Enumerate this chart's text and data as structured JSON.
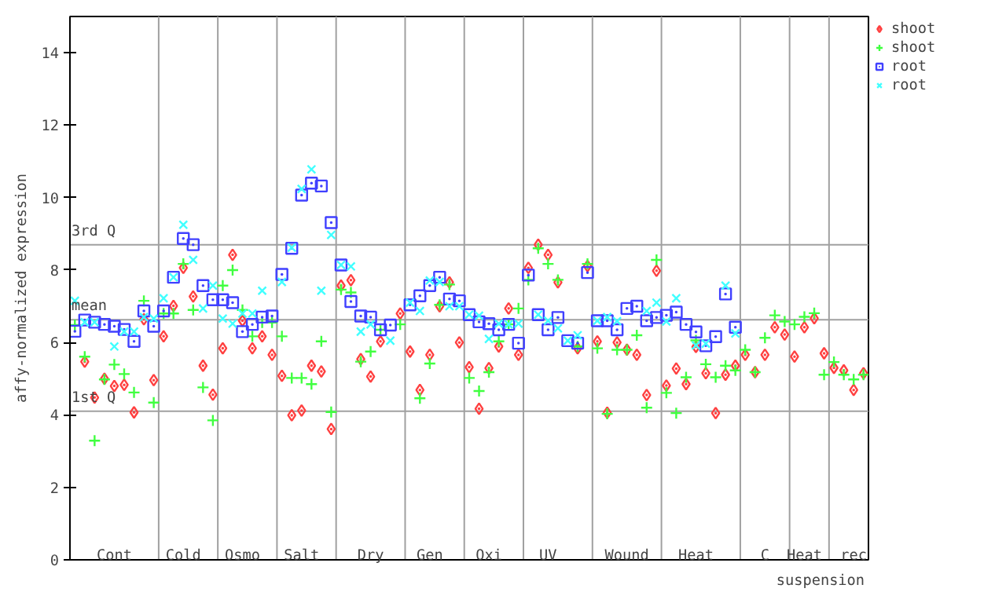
{
  "chart_data": {
    "type": "scatter",
    "ylabel": "affy-normalized expression",
    "categories": [
      null,
      null,
      null,
      null,
      "Cont",
      null,
      null,
      null,
      null,
      null,
      null,
      "Cold",
      null,
      null,
      null,
      null,
      null,
      "Osmo",
      null,
      null,
      null,
      null,
      null,
      "Salt",
      null,
      null,
      null,
      null,
      null,
      null,
      "Dry",
      null,
      null,
      null,
      null,
      null,
      "Gen",
      null,
      null,
      null,
      null,
      null,
      "Oxi",
      null,
      null,
      null,
      null,
      null,
      "UV",
      null,
      null,
      null,
      null,
      null,
      null,
      null,
      "Wound",
      null,
      null,
      null,
      null,
      null,
      null,
      "Heat",
      null,
      null,
      null,
      null,
      null,
      null,
      "C",
      null,
      null,
      null,
      "Heat",
      null,
      null,
      null,
      null,
      "rec",
      null
    ],
    "annotations": [
      "suspension"
    ],
    "ylim": [
      0,
      15
    ],
    "yticks": [
      0,
      2,
      4,
      6,
      8,
      10,
      12,
      14
    ],
    "grid": false,
    "legend": "top right",
    "ref_lines": [
      {
        "axis": "y",
        "value": 8.7,
        "label": "3rd Q",
        "color": "#a0a0a0"
      },
      {
        "axis": "y",
        "value": 6.63,
        "label": "mean",
        "color": "#a0a0a0"
      },
      {
        "axis": "y",
        "value": 4.1,
        "label": "1st Q",
        "color": "#a0a0a0"
      }
    ],
    "series": [
      {
        "name": "shoot",
        "color": "#ff4040",
        "marker": "diamond",
        "values": [
          null,
          5.47,
          4.48,
          5.0,
          4.8,
          4.83,
          4.07,
          6.64,
          4.96,
          6.17,
          7.01,
          8.06,
          7.27,
          5.36,
          4.56,
          5.84,
          8.42,
          6.6,
          5.84,
          6.17,
          5.66,
          5.08,
          3.99,
          4.12,
          5.36,
          5.2,
          3.61,
          7.57,
          7.72,
          5.54,
          5.06,
          6.03,
          null,
          6.8,
          5.75,
          4.69,
          5.66,
          7.0,
          7.66,
          6.0,
          5.32,
          4.17,
          5.29,
          5.89,
          6.94,
          5.66,
          8.06,
          8.7,
          8.42,
          7.66,
          null,
          5.84,
          8.11,
          6.03,
          4.06,
          6.0,
          5.8,
          5.66,
          4.55,
          7.98,
          4.81,
          5.28,
          4.85,
          5.88,
          5.15,
          4.05,
          5.11,
          5.36,
          5.66,
          5.18,
          5.66,
          6.42,
          6.22,
          5.61,
          6.42,
          6.67,
          5.7,
          5.3,
          5.23,
          4.69,
          5.15
        ]
      },
      {
        "name": "shoot",
        "color": "#40ff40",
        "marker": "cross",
        "values": [
          6.48,
          5.61,
          3.29,
          4.98,
          5.39,
          5.13,
          4.62,
          7.15,
          4.34,
          6.8,
          6.8,
          8.17,
          6.9,
          4.76,
          3.85,
          7.57,
          8.0,
          6.9,
          6.17,
          6.55,
          6.55,
          6.17,
          5.02,
          5.02,
          4.85,
          6.03,
          4.08,
          7.46,
          7.38,
          5.47,
          5.75,
          6.35,
          null,
          6.5,
          null,
          4.46,
          5.42,
          7.04,
          7.6,
          null,
          5.02,
          4.66,
          5.18,
          6.03,
          6.5,
          6.94,
          7.73,
          8.6,
          8.17,
          7.73,
          null,
          5.89,
          8.17,
          5.84,
          4.03,
          5.8,
          5.8,
          6.2,
          4.2,
          8.28,
          4.61,
          4.05,
          5.04,
          6.06,
          5.4,
          5.04,
          5.36,
          5.23,
          5.8,
          5.18,
          6.13,
          6.75,
          6.58,
          6.5,
          6.71,
          6.81,
          5.11,
          5.46,
          5.11,
          4.98,
          5.11
        ]
      },
      {
        "name": "root",
        "color": "#4040ff",
        "marker": "square",
        "values": [
          6.31,
          6.62,
          6.56,
          6.5,
          6.45,
          6.36,
          6.03,
          6.87,
          6.45,
          6.87,
          7.8,
          8.87,
          8.7,
          7.57,
          7.18,
          7.18,
          7.1,
          6.3,
          6.5,
          6.7,
          6.73,
          7.88,
          8.6,
          10.07,
          10.4,
          10.32,
          9.31,
          8.14,
          7.13,
          6.73,
          6.7,
          6.35,
          6.48,
          null,
          7.04,
          7.29,
          7.57,
          7.8,
          7.2,
          7.15,
          6.77,
          6.57,
          6.52,
          6.35,
          6.5,
          5.98,
          7.86,
          6.77,
          6.35,
          6.69,
          6.05,
          5.98,
          7.93,
          6.6,
          6.6,
          6.35,
          6.94,
          7.0,
          6.6,
          6.69,
          6.75,
          6.84,
          6.5,
          6.29,
          5.91,
          6.16,
          7.34,
          6.42,
          null,
          null,
          null,
          null,
          null,
          null,
          null,
          null,
          null,
          null,
          null,
          null,
          null
        ]
      },
      {
        "name": "root",
        "color": "#40ffff",
        "marker": "x",
        "values": [
          7.15,
          6.56,
          6.56,
          null,
          5.89,
          6.3,
          6.3,
          6.7,
          6.66,
          7.22,
          7.8,
          9.25,
          8.28,
          6.94,
          7.57,
          6.66,
          6.52,
          6.8,
          6.8,
          7.43,
          null,
          7.67,
          8.62,
          10.24,
          10.78,
          7.43,
          8.97,
          8.14,
          8.1,
          6.3,
          6.5,
          null,
          6.05,
          null,
          7.1,
          6.87,
          7.71,
          7.67,
          7.0,
          7.0,
          6.77,
          6.74,
          6.1,
          6.52,
          6.5,
          6.52,
          null,
          6.77,
          6.6,
          6.39,
          6.05,
          6.2,
          null,
          6.6,
          6.7,
          6.59,
          null,
          null,
          6.87,
          7.1,
          6.58,
          7.22,
          null,
          5.92,
          5.97,
          null,
          7.57,
          6.25,
          null,
          null,
          null,
          null,
          null,
          null,
          null,
          null,
          null,
          null,
          null,
          null,
          null
        ]
      }
    ]
  }
}
